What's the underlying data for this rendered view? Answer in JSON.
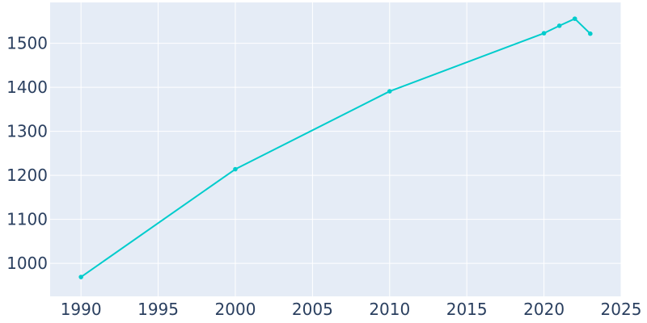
{
  "chart_data": {
    "type": "line",
    "title": "",
    "xlabel": "",
    "ylabel": "",
    "x": [
      1990,
      2000,
      2010,
      2020,
      2021,
      2022,
      2023
    ],
    "series": [
      {
        "values": [
          969,
          1214,
          1391,
          1523,
          1540,
          1556,
          1522
        ]
      }
    ],
    "xlim": [
      1988,
      2025
    ],
    "ylim": [
      925,
      1593
    ],
    "xticks": [
      1990,
      1995,
      2000,
      2005,
      2010,
      2015,
      2020,
      2025
    ],
    "yticks": [
      1000,
      1100,
      1200,
      1300,
      1400,
      1500
    ],
    "grid": true,
    "colors": {
      "line": "#00cccc",
      "plot_bg": "#e5ecf6",
      "grid": "#ffffff",
      "text": "#2a3f5f"
    }
  }
}
